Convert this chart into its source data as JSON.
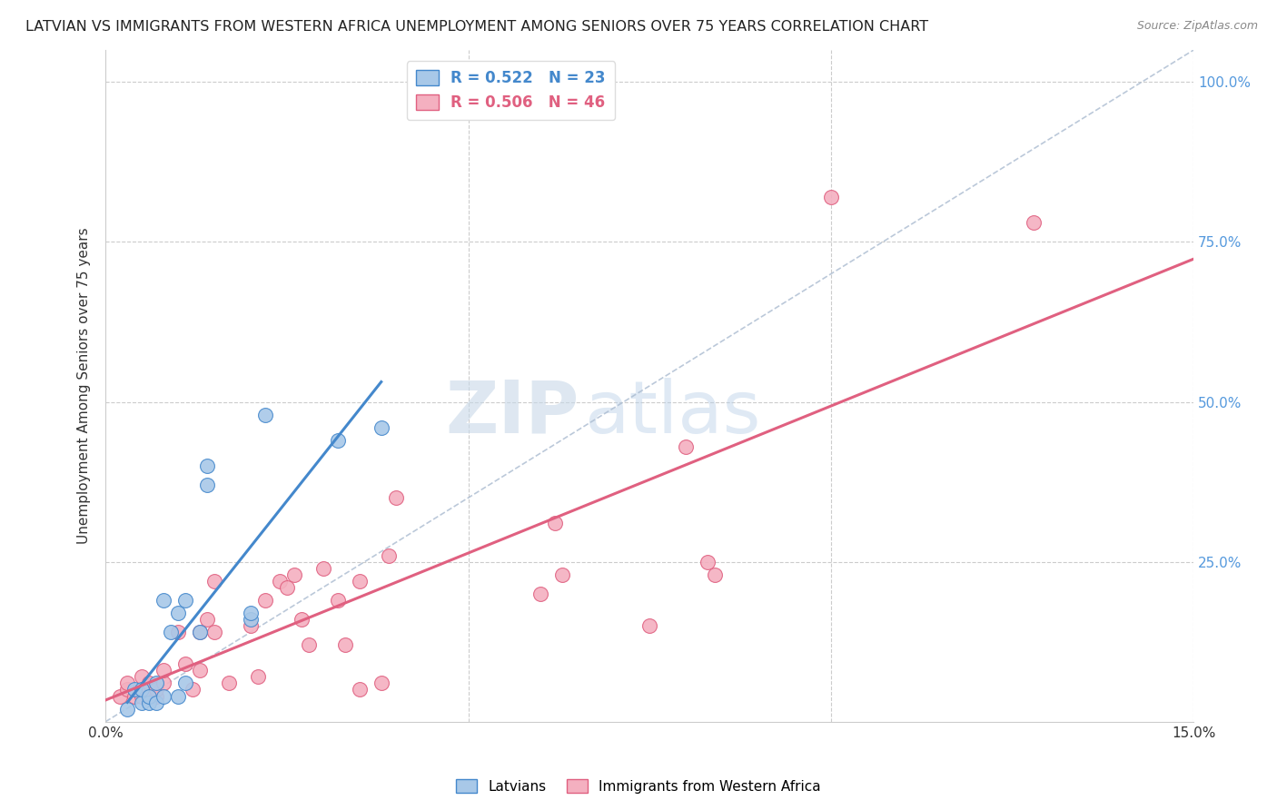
{
  "title": "LATVIAN VS IMMIGRANTS FROM WESTERN AFRICA UNEMPLOYMENT AMONG SENIORS OVER 75 YEARS CORRELATION CHART",
  "source": "Source: ZipAtlas.com",
  "ylabel": "Unemployment Among Seniors over 75 years",
  "xlim": [
    0.0,
    0.15
  ],
  "ylim": [
    0.0,
    1.05
  ],
  "y_ticks_right": [
    0.0,
    0.25,
    0.5,
    0.75,
    1.0
  ],
  "y_tick_labels_right": [
    "",
    "25.0%",
    "50.0%",
    "75.0%",
    "100.0%"
  ],
  "latvian_R": 0.522,
  "latvian_N": 23,
  "immigrant_R": 0.506,
  "immigrant_N": 46,
  "latvian_color": "#a8c8e8",
  "immigrant_color": "#f4b0c0",
  "latvian_line_color": "#4488cc",
  "immigrant_line_color": "#e06080",
  "diagonal_color": "#aabbd0",
  "latvian_x": [
    0.003,
    0.004,
    0.005,
    0.005,
    0.006,
    0.006,
    0.007,
    0.007,
    0.008,
    0.008,
    0.009,
    0.01,
    0.01,
    0.011,
    0.011,
    0.013,
    0.014,
    0.014,
    0.02,
    0.02,
    0.022,
    0.032,
    0.038
  ],
  "latvian_y": [
    0.02,
    0.05,
    0.03,
    0.05,
    0.03,
    0.04,
    0.03,
    0.06,
    0.04,
    0.19,
    0.14,
    0.17,
    0.04,
    0.06,
    0.19,
    0.14,
    0.37,
    0.4,
    0.16,
    0.17,
    0.48,
    0.44,
    0.46
  ],
  "immigrant_x": [
    0.002,
    0.003,
    0.003,
    0.004,
    0.005,
    0.005,
    0.006,
    0.006,
    0.007,
    0.007,
    0.008,
    0.008,
    0.01,
    0.011,
    0.012,
    0.013,
    0.013,
    0.014,
    0.015,
    0.015,
    0.017,
    0.02,
    0.021,
    0.022,
    0.024,
    0.025,
    0.026,
    0.027,
    0.028,
    0.03,
    0.032,
    0.033,
    0.035,
    0.035,
    0.038,
    0.039,
    0.04,
    0.06,
    0.062,
    0.063,
    0.075,
    0.08,
    0.083,
    0.084,
    0.1,
    0.128
  ],
  "immigrant_y": [
    0.04,
    0.05,
    0.06,
    0.04,
    0.04,
    0.07,
    0.05,
    0.06,
    0.04,
    0.05,
    0.06,
    0.08,
    0.14,
    0.09,
    0.05,
    0.08,
    0.14,
    0.16,
    0.14,
    0.22,
    0.06,
    0.15,
    0.07,
    0.19,
    0.22,
    0.21,
    0.23,
    0.16,
    0.12,
    0.24,
    0.19,
    0.12,
    0.05,
    0.22,
    0.06,
    0.26,
    0.35,
    0.2,
    0.31,
    0.23,
    0.15,
    0.43,
    0.25,
    0.23,
    0.82,
    0.78
  ],
  "watermark_zip": "ZIP",
  "watermark_atlas": "atlas",
  "background_color": "#ffffff",
  "grid_color": "#cccccc"
}
